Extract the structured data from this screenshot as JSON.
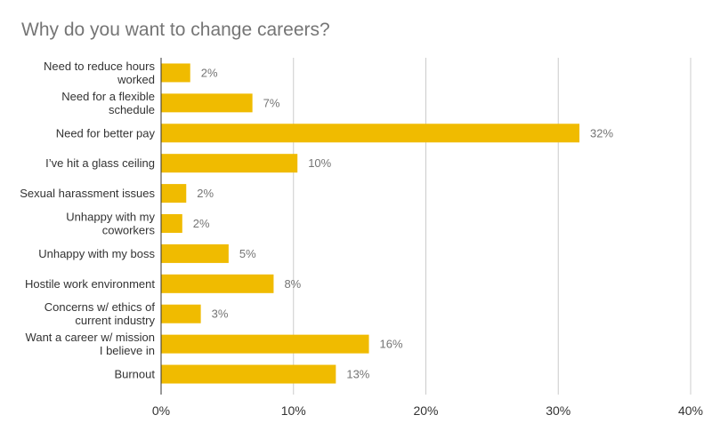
{
  "chart_data": {
    "type": "bar",
    "orientation": "horizontal",
    "title": "Why do you want to change careers?",
    "categories": [
      [
        "Need to reduce hours",
        "worked"
      ],
      [
        "Need for a flexible",
        "schedule"
      ],
      [
        "Need for better pay"
      ],
      [
        "I’ve hit a glass ceiling"
      ],
      [
        "Sexual harassment issues"
      ],
      [
        "Unhappy with my",
        "coworkers"
      ],
      [
        "Unhappy with my boss"
      ],
      [
        "Hostile work environment"
      ],
      [
        "Concerns w/ ethics of",
        "current industry"
      ],
      [
        "Want a career w/ mission",
        "I believe in"
      ],
      [
        "Burnout"
      ]
    ],
    "values": [
      2.2,
      6.9,
      31.6,
      10.3,
      1.9,
      1.6,
      5.1,
      8.5,
      3.0,
      15.7,
      13.2
    ],
    "data_labels": [
      "2%",
      "7%",
      "32%",
      "10%",
      "2%",
      "2%",
      "5%",
      "8%",
      "3%",
      "16%",
      "13%"
    ],
    "xlim": [
      0,
      40
    ],
    "x_ticks": [
      0,
      10,
      20,
      30,
      40
    ],
    "x_tick_labels": [
      "0%",
      "10%",
      "20%",
      "30%",
      "40%"
    ],
    "grid": true,
    "legend": "none",
    "colors": {
      "bar": "#f0bb00",
      "grid": "#cccccc",
      "axis": "#333333",
      "label": "#333333",
      "data_label": "#757575",
      "title": "#757575"
    }
  }
}
